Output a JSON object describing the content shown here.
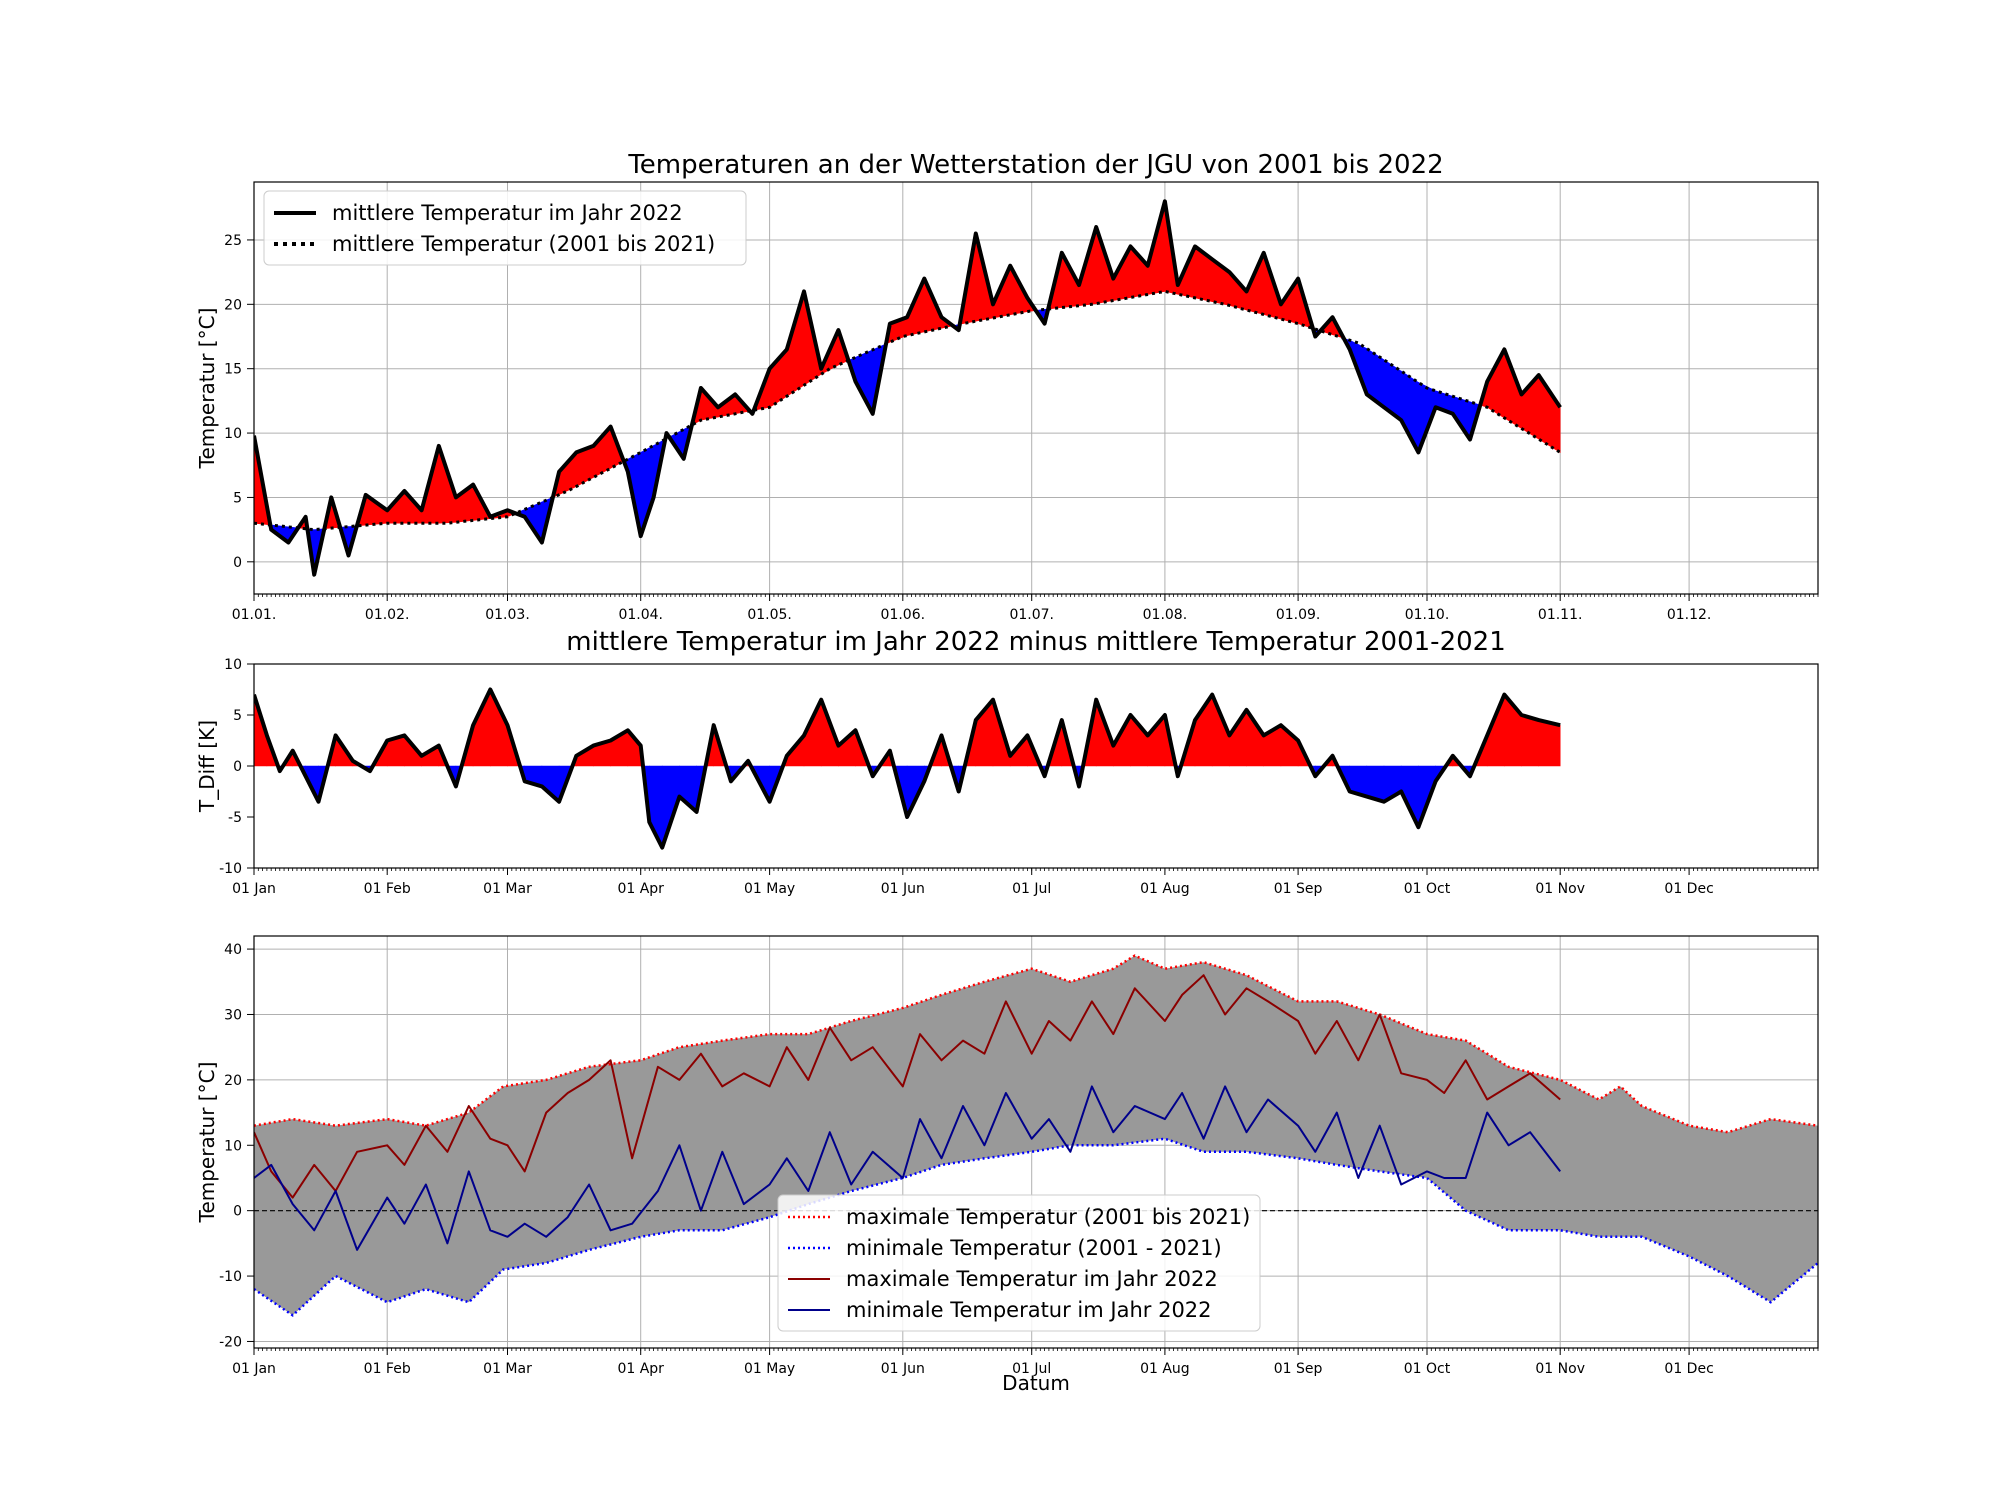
{
  "figure": {
    "title_top": "Temperaturen an der Wetterstation der JGU von 2001 bis 2022",
    "title_mid": "mittlere Temperatur im Jahr 2022 minus mittlere Temperatur 2001-2021",
    "xlabel_bottom": "Datum"
  },
  "colors": {
    "above": "#ff0000",
    "below": "#0000ff",
    "band": "#999999",
    "max2022": "#8b0000",
    "min2022": "#00008b",
    "maxClim": "#ff0000",
    "minClim": "#0000ff"
  },
  "chart_data": [
    {
      "type": "line",
      "title": "Temperaturen an der Wetterstation der JGU von 2001 bis 2022",
      "ylabel": "Temperatur [°C]",
      "ylim": [
        -2.5,
        29.5
      ],
      "xlim": [
        "2022-01-01",
        "2022-12-31"
      ],
      "yticks": [
        0,
        5,
        10,
        15,
        20,
        25
      ],
      "xticks": [
        "01.01.",
        "01.02.",
        "01.03.",
        "01.04.",
        "01.05.",
        "01.06.",
        "01.07.",
        "01.08.",
        "01.09.",
        "01.10.",
        "01.11.",
        "01.12."
      ],
      "grid": true,
      "legend_position": "upper-left",
      "fill": "red where 2022 above mean, blue where below",
      "series": [
        {
          "name": "mittlere Temperatur im Jahr 2022",
          "style": "solid",
          "x": [
            "2022-01-01",
            "2022-01-05",
            "2022-01-09",
            "2022-01-13",
            "2022-01-15",
            "2022-01-19",
            "2022-01-23",
            "2022-01-27",
            "2022-02-01",
            "2022-02-05",
            "2022-02-09",
            "2022-02-13",
            "2022-02-17",
            "2022-02-21",
            "2022-02-25",
            "2022-03-01",
            "2022-03-05",
            "2022-03-09",
            "2022-03-13",
            "2022-03-17",
            "2022-03-21",
            "2022-03-25",
            "2022-03-29",
            "2022-04-01",
            "2022-04-04",
            "2022-04-07",
            "2022-04-11",
            "2022-04-15",
            "2022-04-19",
            "2022-04-23",
            "2022-04-27",
            "2022-05-01",
            "2022-05-05",
            "2022-05-09",
            "2022-05-13",
            "2022-05-17",
            "2022-05-21",
            "2022-05-25",
            "2022-05-29",
            "2022-06-02",
            "2022-06-06",
            "2022-06-10",
            "2022-06-14",
            "2022-06-18",
            "2022-06-22",
            "2022-06-26",
            "2022-06-30",
            "2022-07-04",
            "2022-07-08",
            "2022-07-12",
            "2022-07-16",
            "2022-07-20",
            "2022-07-24",
            "2022-07-28",
            "2022-08-01",
            "2022-08-04",
            "2022-08-08",
            "2022-08-12",
            "2022-08-16",
            "2022-08-20",
            "2022-08-24",
            "2022-08-28",
            "2022-09-01",
            "2022-09-05",
            "2022-09-09",
            "2022-09-13",
            "2022-09-17",
            "2022-09-21",
            "2022-09-25",
            "2022-09-29",
            "2022-10-03",
            "2022-10-07",
            "2022-10-11",
            "2022-10-15",
            "2022-10-19",
            "2022-10-23",
            "2022-10-27",
            "2022-11-01"
          ],
          "y": [
            9.8,
            2.5,
            1.5,
            3.5,
            -1.0,
            5.0,
            0.5,
            5.2,
            4.0,
            5.5,
            4.0,
            9.0,
            5.0,
            6.0,
            3.5,
            4.0,
            3.5,
            1.5,
            7.0,
            8.5,
            9.0,
            10.5,
            7.0,
            2.0,
            5.0,
            10.0,
            8.0,
            13.5,
            12.0,
            13.0,
            11.5,
            15.0,
            16.5,
            21.0,
            15.0,
            18.0,
            14.0,
            11.5,
            18.5,
            19.0,
            22.0,
            19.0,
            18.0,
            25.5,
            20.0,
            23.0,
            20.5,
            18.5,
            24.0,
            21.5,
            26.0,
            22.0,
            24.5,
            23.0,
            28.0,
            21.5,
            24.5,
            23.5,
            22.5,
            21.0,
            24.0,
            20.0,
            22.0,
            17.5,
            19.0,
            16.5,
            13.0,
            12.0,
            11.0,
            8.5,
            12.0,
            11.5,
            9.5,
            14.0,
            16.5,
            13.0,
            14.5,
            12.0
          ]
        },
        {
          "name": "mittlere Temperatur (2001 bis 2021)",
          "style": "dotted",
          "x": [
            "2022-01-01",
            "2022-01-15",
            "2022-02-01",
            "2022-02-15",
            "2022-03-01",
            "2022-03-15",
            "2022-04-01",
            "2022-04-15",
            "2022-05-01",
            "2022-05-15",
            "2022-06-01",
            "2022-06-15",
            "2022-07-01",
            "2022-07-15",
            "2022-08-01",
            "2022-08-15",
            "2022-09-01",
            "2022-09-15",
            "2022-10-01",
            "2022-10-15",
            "2022-11-01"
          ],
          "y": [
            3.0,
            2.5,
            3.0,
            3.0,
            3.5,
            5.5,
            8.5,
            11.0,
            12.0,
            15.0,
            17.5,
            18.5,
            19.5,
            20.0,
            21.0,
            20.0,
            18.5,
            17.0,
            13.5,
            12.0,
            8.5
          ]
        }
      ]
    },
    {
      "type": "area",
      "title": "mittlere Temperatur im Jahr 2022 minus mittlere Temperatur 2001-2021",
      "ylabel": "T_Diff [K]",
      "ylim": [
        -10,
        10
      ],
      "xlim": [
        "2022-01-01",
        "2022-12-31"
      ],
      "yticks": [
        -10,
        -5,
        0,
        5,
        10
      ],
      "xticks": [
        "01 Jan",
        "01 Feb",
        "01 Mar",
        "01 Apr",
        "01 May",
        "01 Jun",
        "01 Jul",
        "01 Aug",
        "01 Sep",
        "01 Oct",
        "01 Nov",
        "01 Dec"
      ],
      "grid": false,
      "fill": "red above 0, blue below 0",
      "series": [
        {
          "x": [
            "2022-01-01",
            "2022-01-04",
            "2022-01-07",
            "2022-01-10",
            "2022-01-13",
            "2022-01-16",
            "2022-01-20",
            "2022-01-24",
            "2022-01-28",
            "2022-02-01",
            "2022-02-05",
            "2022-02-09",
            "2022-02-13",
            "2022-02-17",
            "2022-02-21",
            "2022-02-25",
            "2022-03-01",
            "2022-03-05",
            "2022-03-09",
            "2022-03-13",
            "2022-03-17",
            "2022-03-21",
            "2022-03-25",
            "2022-03-29",
            "2022-04-01",
            "2022-04-03",
            "2022-04-06",
            "2022-04-10",
            "2022-04-14",
            "2022-04-18",
            "2022-04-22",
            "2022-04-26",
            "2022-05-01",
            "2022-05-05",
            "2022-05-09",
            "2022-05-13",
            "2022-05-17",
            "2022-05-21",
            "2022-05-25",
            "2022-05-29",
            "2022-06-02",
            "2022-06-06",
            "2022-06-10",
            "2022-06-14",
            "2022-06-18",
            "2022-06-22",
            "2022-06-26",
            "2022-06-30",
            "2022-07-04",
            "2022-07-08",
            "2022-07-12",
            "2022-07-16",
            "2022-07-20",
            "2022-07-24",
            "2022-07-28",
            "2022-08-01",
            "2022-08-04",
            "2022-08-08",
            "2022-08-12",
            "2022-08-16",
            "2022-08-20",
            "2022-08-24",
            "2022-08-28",
            "2022-09-01",
            "2022-09-05",
            "2022-09-09",
            "2022-09-13",
            "2022-09-17",
            "2022-09-21",
            "2022-09-25",
            "2022-09-29",
            "2022-10-03",
            "2022-10-07",
            "2022-10-11",
            "2022-10-15",
            "2022-10-19",
            "2022-10-23",
            "2022-10-27",
            "2022-11-01"
          ],
          "y": [
            7.0,
            3.0,
            -0.5,
            1.5,
            -1.0,
            -3.5,
            3.0,
            0.5,
            -0.5,
            2.5,
            3.0,
            1.0,
            2.0,
            -2.0,
            4.0,
            7.5,
            4.0,
            -1.5,
            -2.0,
            -3.5,
            1.0,
            2.0,
            2.5,
            3.5,
            2.0,
            -5.5,
            -8.0,
            -3.0,
            -4.5,
            4.0,
            -1.5,
            0.5,
            -3.5,
            1.0,
            3.0,
            6.5,
            2.0,
            3.5,
            -1.0,
            1.5,
            -5.0,
            -1.5,
            3.0,
            -2.5,
            4.5,
            6.5,
            1.0,
            3.0,
            -1.0,
            4.5,
            -2.0,
            6.5,
            2.0,
            5.0,
            3.0,
            5.0,
            -1.0,
            4.5,
            7.0,
            3.0,
            5.5,
            3.0,
            4.0,
            2.5,
            -1.0,
            1.0,
            -2.5,
            -3.0,
            -3.5,
            -2.5,
            -6.0,
            -1.5,
            1.0,
            -1.0,
            3.0,
            7.0,
            5.0,
            4.5,
            4.0
          ]
        }
      ]
    },
    {
      "type": "line",
      "ylabel": "Temperatur [°C]",
      "xlabel": "Datum",
      "ylim": [
        -21,
        42
      ],
      "xlim": [
        "2022-01-01",
        "2022-12-31"
      ],
      "yticks": [
        -20,
        -10,
        0,
        10,
        20,
        30,
        40
      ],
      "xticks": [
        "01 Jan",
        "01 Feb",
        "01 Mar",
        "01 Apr",
        "01 May",
        "01 Jun",
        "01 Jul",
        "01 Aug",
        "01 Sep",
        "01 Oct",
        "01 Nov",
        "01 Dec"
      ],
      "grid": true,
      "legend_position": "lower-center",
      "zero_line": "dashed",
      "band_fill": "grey between climatological min and max",
      "series": [
        {
          "name": "maximale Temperatur (2001 bis 2021)",
          "style": "dotted",
          "x": [
            "2022-01-01",
            "2022-01-10",
            "2022-01-20",
            "2022-02-01",
            "2022-02-10",
            "2022-02-20",
            "2022-02-28",
            "2022-03-10",
            "2022-03-20",
            "2022-04-01",
            "2022-04-10",
            "2022-04-20",
            "2022-05-01",
            "2022-05-10",
            "2022-05-20",
            "2022-06-01",
            "2022-06-10",
            "2022-06-20",
            "2022-07-01",
            "2022-07-10",
            "2022-07-20",
            "2022-07-25",
            "2022-08-01",
            "2022-08-10",
            "2022-08-20",
            "2022-09-01",
            "2022-09-10",
            "2022-09-20",
            "2022-10-01",
            "2022-10-10",
            "2022-10-20",
            "2022-11-01",
            "2022-11-10",
            "2022-11-15",
            "2022-11-20",
            "2022-12-01",
            "2022-12-10",
            "2022-12-20",
            "2022-12-31"
          ],
          "y": [
            13,
            14,
            13,
            14,
            13,
            15,
            19,
            20,
            22,
            23,
            25,
            26,
            27,
            27,
            29,
            31,
            33,
            35,
            37,
            35,
            37,
            39,
            37,
            38,
            36,
            32,
            32,
            30,
            27,
            26,
            22,
            20,
            17,
            19,
            16,
            13,
            12,
            14,
            13
          ]
        },
        {
          "name": "minimale Temperatur (2001 - 2021)",
          "style": "dotted",
          "x": [
            "2022-01-01",
            "2022-01-10",
            "2022-01-20",
            "2022-02-01",
            "2022-02-10",
            "2022-02-20",
            "2022-02-28",
            "2022-03-10",
            "2022-03-20",
            "2022-04-01",
            "2022-04-10",
            "2022-04-20",
            "2022-05-01",
            "2022-05-10",
            "2022-05-20",
            "2022-06-01",
            "2022-06-10",
            "2022-06-20",
            "2022-07-01",
            "2022-07-10",
            "2022-07-20",
            "2022-08-01",
            "2022-08-10",
            "2022-08-20",
            "2022-09-01",
            "2022-09-10",
            "2022-09-20",
            "2022-10-01",
            "2022-10-10",
            "2022-10-20",
            "2022-11-01",
            "2022-11-10",
            "2022-11-20",
            "2022-12-01",
            "2022-12-10",
            "2022-12-20",
            "2022-12-31"
          ],
          "y": [
            -12,
            -16,
            -10,
            -14,
            -12,
            -14,
            -9,
            -8,
            -6,
            -4,
            -3,
            -3,
            -1,
            1,
            3,
            5,
            7,
            8,
            9,
            10,
            10,
            11,
            9,
            9,
            8,
            7,
            6,
            5,
            0,
            -3,
            -3,
            -4,
            -4,
            -7,
            -10,
            -14,
            -8
          ]
        },
        {
          "name": "maximale Temperatur im Jahr 2022",
          "style": "solid",
          "x": [
            "2022-01-01",
            "2022-01-05",
            "2022-01-10",
            "2022-01-15",
            "2022-01-20",
            "2022-01-25",
            "2022-02-01",
            "2022-02-05",
            "2022-02-10",
            "2022-02-15",
            "2022-02-20",
            "2022-02-25",
            "2022-03-01",
            "2022-03-05",
            "2022-03-10",
            "2022-03-15",
            "2022-03-20",
            "2022-03-25",
            "2022-03-30",
            "2022-04-05",
            "2022-04-10",
            "2022-04-15",
            "2022-04-20",
            "2022-04-25",
            "2022-05-01",
            "2022-05-05",
            "2022-05-10",
            "2022-05-15",
            "2022-05-20",
            "2022-05-25",
            "2022-06-01",
            "2022-06-05",
            "2022-06-10",
            "2022-06-15",
            "2022-06-20",
            "2022-06-25",
            "2022-07-01",
            "2022-07-05",
            "2022-07-10",
            "2022-07-15",
            "2022-07-20",
            "2022-07-25",
            "2022-08-01",
            "2022-08-05",
            "2022-08-10",
            "2022-08-15",
            "2022-08-20",
            "2022-08-25",
            "2022-09-01",
            "2022-09-05",
            "2022-09-10",
            "2022-09-15",
            "2022-09-20",
            "2022-09-25",
            "2022-10-01",
            "2022-10-05",
            "2022-10-10",
            "2022-10-15",
            "2022-10-20",
            "2022-10-25",
            "2022-11-01"
          ],
          "y": [
            12,
            6,
            2,
            7,
            3,
            9,
            10,
            7,
            13,
            9,
            16,
            11,
            10,
            6,
            15,
            18,
            20,
            23,
            8,
            22,
            20,
            24,
            19,
            21,
            19,
            25,
            20,
            28,
            23,
            25,
            19,
            27,
            23,
            26,
            24,
            32,
            24,
            29,
            26,
            32,
            27,
            34,
            29,
            33,
            36,
            30,
            34,
            32,
            29,
            24,
            29,
            23,
            30,
            21,
            20,
            18,
            23,
            17,
            19,
            21,
            17
          ]
        },
        {
          "name": "minimale Temperatur im Jahr 2022",
          "style": "solid",
          "x": [
            "2022-01-01",
            "2022-01-05",
            "2022-01-10",
            "2022-01-15",
            "2022-01-20",
            "2022-01-25",
            "2022-02-01",
            "2022-02-05",
            "2022-02-10",
            "2022-02-15",
            "2022-02-20",
            "2022-02-25",
            "2022-03-01",
            "2022-03-05",
            "2022-03-10",
            "2022-03-15",
            "2022-03-20",
            "2022-03-25",
            "2022-03-30",
            "2022-04-05",
            "2022-04-10",
            "2022-04-15",
            "2022-04-20",
            "2022-04-25",
            "2022-05-01",
            "2022-05-05",
            "2022-05-10",
            "2022-05-15",
            "2022-05-20",
            "2022-05-25",
            "2022-06-01",
            "2022-06-05",
            "2022-06-10",
            "2022-06-15",
            "2022-06-20",
            "2022-06-25",
            "2022-07-01",
            "2022-07-05",
            "2022-07-10",
            "2022-07-15",
            "2022-07-20",
            "2022-07-25",
            "2022-08-01",
            "2022-08-05",
            "2022-08-10",
            "2022-08-15",
            "2022-08-20",
            "2022-08-25",
            "2022-09-01",
            "2022-09-05",
            "2022-09-10",
            "2022-09-15",
            "2022-09-20",
            "2022-09-25",
            "2022-10-01",
            "2022-10-05",
            "2022-10-10",
            "2022-10-15",
            "2022-10-20",
            "2022-10-25",
            "2022-11-01"
          ],
          "y": [
            5,
            7,
            1,
            -3,
            3,
            -6,
            2,
            -2,
            4,
            -5,
            6,
            -3,
            -4,
            -2,
            -4,
            -1,
            4,
            -3,
            -2,
            3,
            10,
            0,
            9,
            1,
            4,
            8,
            3,
            12,
            4,
            9,
            5,
            14,
            8,
            16,
            10,
            18,
            11,
            14,
            9,
            19,
            12,
            16,
            14,
            18,
            11,
            19,
            12,
            17,
            13,
            9,
            15,
            5,
            13,
            4,
            6,
            5,
            5,
            15,
            10,
            12,
            6
          ]
        }
      ]
    }
  ]
}
